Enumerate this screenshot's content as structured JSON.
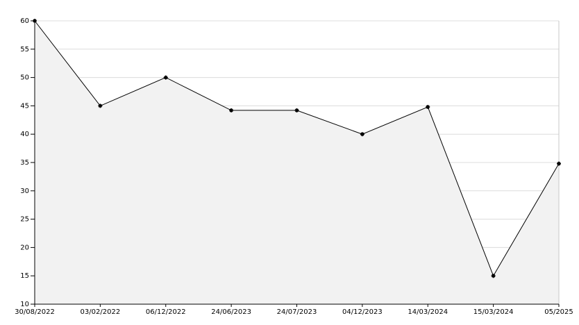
{
  "chart_data": {
    "type": "line",
    "categories": [
      "30/08/2022",
      "03/02/2022",
      "06/12/2022",
      "24/06/2023",
      "24/07/2023",
      "04/12/2023",
      "14/03/2024",
      "15/03/2024",
      "05/2025"
    ],
    "values": [
      60,
      45,
      50,
      44.2,
      44.2,
      40,
      44.8,
      15,
      34.8
    ],
    "color": "#000000",
    "fill": "#f2f2f2",
    "ylim": [
      10,
      60
    ],
    "yticks": [
      10,
      15,
      20,
      25,
      30,
      35,
      40,
      45,
      50,
      55,
      60
    ],
    "grid": true
  }
}
